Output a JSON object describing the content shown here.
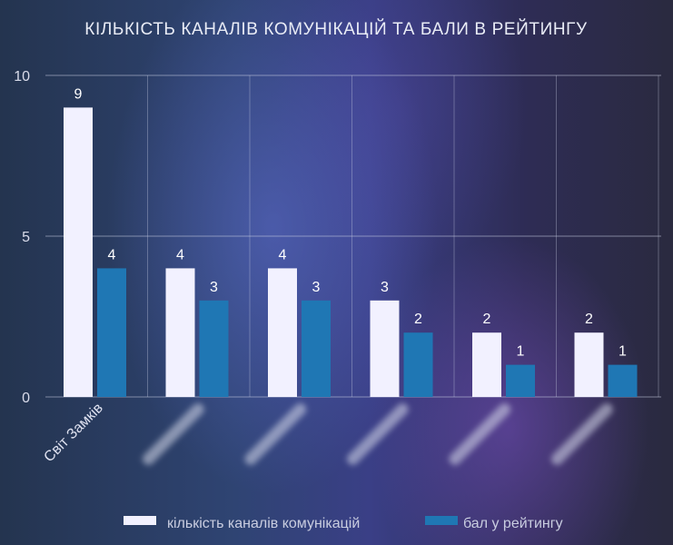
{
  "chart_data": {
    "type": "bar",
    "title": "КІЛЬКІСТЬ КАНАЛІВ КОМУНІКАЦІЙ ТА БАЛИ В РЕЙТИНГУ",
    "categories": [
      "Світ Замків",
      "",
      "",
      "",
      "",
      ""
    ],
    "series": [
      {
        "name": "кількість каналів комунікацій",
        "color": "#f2f1ff",
        "values": [
          9,
          4,
          4,
          3,
          2,
          2
        ]
      },
      {
        "name": "бал у рейтингу",
        "color": "#1f77b4",
        "values": [
          4,
          3,
          3,
          2,
          1,
          1
        ]
      }
    ],
    "yticks": [
      0,
      5,
      10
    ],
    "ylim": [
      0,
      10
    ],
    "grid": true,
    "legend_position": "bottom-center",
    "category_labels_blurred": [
      false,
      true,
      true,
      true,
      true,
      true
    ]
  }
}
